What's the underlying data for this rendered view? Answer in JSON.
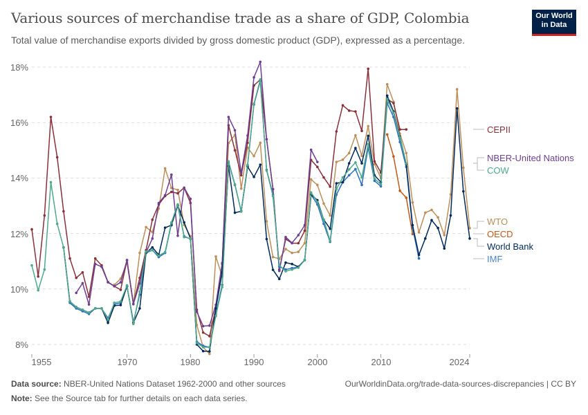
{
  "header": {
    "title": "Various sources of merchandise trade as a share of GDP, Colombia",
    "subtitle": "Total value of merchandise exports divided by gross domestic product (GDP), expressed as a percentage.",
    "logo_line1": "Our World",
    "logo_line2": "in Data"
  },
  "footer": {
    "source_label": "Data source:",
    "source_text": "NBER-United Nations Dataset 1962-2000 and other sources",
    "url": "OurWorldinData.org/trade-data-sources-discrepancies | CC BY",
    "note_label": "Note:",
    "note_text": "See the Source tab for further details on each data series."
  },
  "chart_data": {
    "type": "line",
    "title": "Various sources of merchandise trade as a share of GDP, Colombia",
    "xlim": [
      1955,
      2024
    ],
    "ylim": [
      8,
      18
    ],
    "x_ticks": [
      "1955",
      "1970",
      "1980",
      "1990",
      "2000",
      "2010",
      "2024"
    ],
    "y_ticks": [
      "8%",
      "10%",
      "12%",
      "14%",
      "16%",
      "18%"
    ],
    "grid": "horizontal dashed",
    "legend": "right, line-end labels",
    "series": [
      {
        "name": "WTO",
        "color": "#bc8e5a",
        "start": 1968,
        "values": [
          10.15,
          10.37,
          10.95,
          9.45,
          11.3,
          12.23,
          12.05,
          12.9,
          14.35,
          13.64,
          13.57,
          12.31,
          11.9,
          8.7,
          7.9,
          7.66,
          11.17,
          10.45,
          15.26,
          15.55,
          13.62,
          15.1,
          14.79,
          15.27,
          12.44,
          11.15,
          11.09,
          11.44,
          11.3,
          11.34,
          11.65,
          13.95,
          13.75,
          13.08,
          12.65,
          14.58,
          14.66,
          14.9,
          15.54,
          14.8,
          15.87,
          14.5,
          14.0,
          17.38,
          16.75,
          15.6,
          14.9,
          13.12,
          12.04,
          12.75,
          12.85,
          12.58,
          11.94,
          13.41,
          17.2,
          14.37,
          12.19
        ]
      },
      {
        "name": "OECD",
        "color": "#c05917",
        "start": 2011,
        "values": [
          15.57,
          14.78,
          13.54,
          13.29,
          11.98
        ]
      },
      {
        "name": "CEPII",
        "color": "#883039",
        "start": 1955,
        "values": [
          12.15,
          10.45,
          12.65,
          16.2,
          14.75,
          12.8,
          11.1,
          10.4,
          10.6,
          9.72,
          11.1,
          10.85,
          10.25,
          10.1,
          9.97,
          11.04,
          9.46,
          10.4,
          11.4,
          12.5,
          13.05,
          13.35,
          13.5,
          13.45,
          13.65,
          13.1,
          9.25,
          8.43,
          8.3,
          9.3,
          10.9,
          15.9,
          15.0,
          14.1,
          15.27,
          17.34,
          17.55,
          15.4,
          13.6,
          10.7,
          11.8,
          11.65,
          11.65,
          12.1,
          14.65,
          14.4,
          14.02,
          13.69,
          15.68,
          16.62,
          16.43,
          16.4,
          15.7,
          17.94,
          14.6,
          14.2,
          16.85,
          16.7,
          15.75,
          15.75
        ]
      },
      {
        "name": "NBER-United Nations",
        "color": "#6d3e91",
        "start": 1962,
        "values": [
          9.86,
          10.21,
          9.44,
          10.9,
          10.8,
          10.24,
          10.1,
          10.24,
          11.04,
          9.46,
          10.2,
          11.32,
          11.82,
          13.1,
          13.38,
          14.12,
          11.92,
          13.65,
          13.25,
          9.18,
          8.66,
          8.68,
          9.43,
          10.94,
          16.2,
          15.72,
          14.18,
          15.53,
          17.63,
          18.19,
          15.4,
          13.6,
          10.65,
          11.87,
          11.66,
          11.94,
          12.3,
          15.02,
          14.58
        ]
      },
      {
        "name": "IMF",
        "color": "#2e6fbd",
        "start": 1960,
        "values": [
          11.5,
          9.5,
          9.3,
          9.2,
          9.1,
          9.3,
          9.3,
          8.95,
          9.45,
          9.5,
          10.1,
          8.8,
          9.8,
          11.3,
          11.4,
          11.15,
          11.3,
          12.35,
          13.0,
          11.9,
          11.8,
          8.1,
          7.95,
          7.9,
          9.1,
          10.15,
          14.55,
          13.75,
          12.8,
          14.45,
          16.65,
          17.5,
          14.3,
          13.4,
          10.8,
          10.7,
          10.75,
          10.8,
          11.05,
          13.4,
          13.05,
          12.35,
          11.7,
          13.4,
          13.85,
          14.1,
          14.32,
          13.75,
          15.1,
          13.9,
          13.7,
          16.7,
          16.2,
          15.3,
          14.4,
          12.2,
          11.1
        ]
      },
      {
        "name": "World Bank",
        "color": "#00295b",
        "start": 1960,
        "values": [
          11.5,
          9.55,
          9.35,
          9.25,
          9.15,
          9.3,
          9.3,
          8.78,
          9.4,
          9.42,
          10.1,
          8.78,
          9.3,
          11.3,
          11.5,
          11.23,
          12.21,
          12.3,
          13.02,
          12.4,
          11.82,
          8.0,
          7.76,
          7.75,
          9.3,
          10.6,
          14.43,
          12.75,
          12.8,
          14.41,
          14.04,
          14.48,
          11.8,
          10.69,
          10.36,
          10.95,
          10.9,
          10.8,
          11.04,
          13.4,
          13.2,
          12.5,
          12.17,
          13.81,
          13.85,
          14.53,
          15.08,
          14.53,
          15.52,
          14.1,
          13.85,
          16.97,
          16.4,
          15.5,
          14.5,
          12.3,
          11.23,
          11.82,
          12.48,
          12.2,
          11.46,
          12.65,
          16.51,
          13.52,
          11.82
        ]
      },
      {
        "name": "COW",
        "color": "#4fa88a",
        "start": 1955,
        "values": [
          10.85,
          9.95,
          10.7,
          13.85,
          12.35,
          11.5,
          9.55,
          9.35,
          9.25,
          9.15,
          9.3,
          9.3,
          8.9,
          9.5,
          9.55,
          10.13,
          8.74,
          9.9,
          11.35,
          11.4,
          11.2,
          11.33,
          12.4,
          13.05,
          11.87,
          11.82,
          8.05,
          7.9,
          7.9,
          9.03,
          10.07,
          14.6,
          13.77,
          12.79,
          14.48,
          16.68,
          17.55,
          14.27,
          13.35,
          10.85,
          10.64,
          10.7,
          10.77,
          11.04,
          13.48,
          13.14,
          12.5,
          11.73,
          13.6,
          14.02,
          14.31,
          14.56,
          14.02,
          15.22,
          13.98,
          13.77,
          16.85,
          16.35,
          15.47,
          14.52
        ]
      }
    ]
  }
}
